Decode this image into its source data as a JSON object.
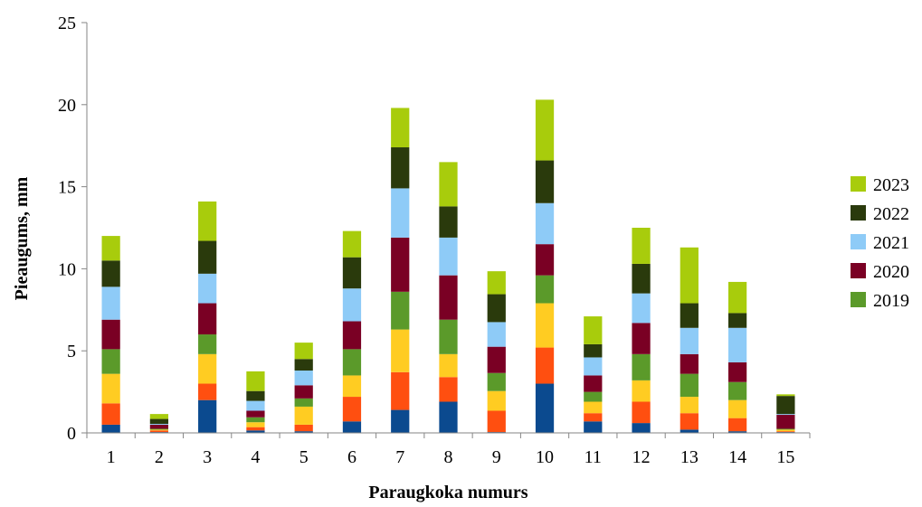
{
  "chart_data": {
    "type": "bar",
    "stacked": true,
    "title": "",
    "xlabel": "Paraugkoka numurs",
    "ylabel": "Pieaugums, mm",
    "ylim": [
      0,
      25
    ],
    "yticks": [
      "0",
      "5",
      "10",
      "15",
      "20",
      "25"
    ],
    "categories": [
      "1",
      "2",
      "3",
      "4",
      "5",
      "6",
      "7",
      "8",
      "9",
      "10",
      "11",
      "12",
      "13",
      "14",
      "15"
    ],
    "grid": false,
    "legend_position": "right",
    "series": [
      {
        "color": "#0b4a8f",
        "values": [
          0.5,
          0.05,
          2.0,
          0.15,
          0.1,
          0.7,
          1.4,
          1.9,
          0.05,
          3.0,
          0.7,
          0.6,
          0.2,
          0.1,
          0.05
        ]
      },
      {
        "color": "#ff4f10",
        "values": [
          1.3,
          0.1,
          1.0,
          0.2,
          0.4,
          1.5,
          2.3,
          1.5,
          1.3,
          2.2,
          0.5,
          1.3,
          1.0,
          0.8,
          0.05
        ]
      },
      {
        "color": "#ffcc22",
        "values": [
          1.8,
          0.05,
          1.8,
          0.3,
          1.1,
          1.3,
          2.6,
          1.4,
          1.2,
          2.7,
          0.7,
          1.3,
          1.0,
          1.1,
          0.1
        ]
      },
      {
        "name": "2019",
        "color": "#5b9a2a",
        "values": [
          1.5,
          0.05,
          1.2,
          0.3,
          0.5,
          1.6,
          2.3,
          2.1,
          1.1,
          1.7,
          0.6,
          1.6,
          1.4,
          1.1,
          0.05
        ]
      },
      {
        "name": "2020",
        "color": "#7a0024",
        "values": [
          1.8,
          0.25,
          1.9,
          0.4,
          0.8,
          1.7,
          3.3,
          2.7,
          1.6,
          1.9,
          1.0,
          1.9,
          1.2,
          1.2,
          0.85
        ]
      },
      {
        "name": "2021",
        "color": "#8ecbf7",
        "values": [
          2.0,
          0.05,
          1.8,
          0.6,
          0.9,
          2.0,
          3.0,
          2.3,
          1.5,
          2.5,
          1.1,
          1.8,
          1.6,
          2.1,
          0.05
        ]
      },
      {
        "name": "2022",
        "color": "#2a3a0c",
        "values": [
          1.6,
          0.3,
          2.0,
          0.6,
          0.7,
          1.9,
          2.5,
          1.9,
          1.7,
          2.6,
          0.8,
          1.8,
          1.5,
          0.9,
          1.1
        ]
      },
      {
        "name": "2023",
        "color": "#a8cc0c",
        "values": [
          1.5,
          0.3,
          2.4,
          1.2,
          1.0,
          1.6,
          2.4,
          2.7,
          1.4,
          3.7,
          1.7,
          2.2,
          3.4,
          1.9,
          0.1
        ]
      }
    ],
    "legend": [
      {
        "label": "2023",
        "color": "#a8cc0c"
      },
      {
        "label": "2022",
        "color": "#2a3a0c"
      },
      {
        "label": "2021",
        "color": "#8ecbf7"
      },
      {
        "label": "2020",
        "color": "#7a0024"
      },
      {
        "label": "2019",
        "color": "#5b9a2a"
      }
    ]
  }
}
